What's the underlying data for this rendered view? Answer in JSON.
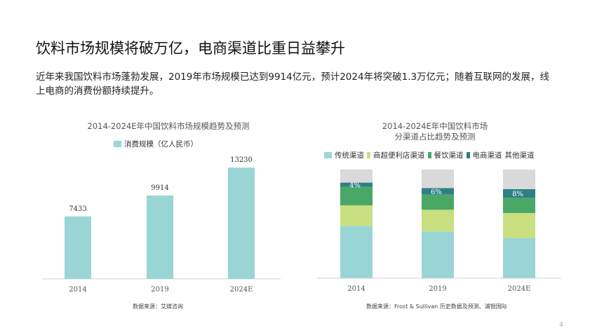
{
  "page": {
    "title": "饮料市场规模将破万亿，电商渠道比重日益攀升",
    "subtitle": "近年来我国饮料市场蓬勃发展，2019年市场规模已达到9914亿元，预计2024年将突破1.3万亿元；随着互联网的发展，线上电商的消费份额持续提升。",
    "page_number": "4"
  },
  "chart_data": [
    {
      "type": "bar",
      "title": "2014-2024E年中国饮料市场规模趋势及预测",
      "categories": [
        "2014",
        "2019",
        "2024E"
      ],
      "series": [
        {
          "name": "消费规模（亿人民币）",
          "values": [
            7433,
            9914,
            13230
          ]
        }
      ],
      "ylim": [
        0,
        15000
      ],
      "legend": "top-center",
      "grid": false,
      "color": "#9ad5d6",
      "source": "数据来源：艾媒咨询"
    },
    {
      "type": "bar",
      "stacked": true,
      "percent": true,
      "title_lines": [
        "2014-2024E年中国饮料市场",
        "分渠道占比趋势及预测"
      ],
      "categories": [
        "2014",
        "2019",
        "2024E"
      ],
      "series": [
        {
          "name": "传统渠道",
          "color": "#9ad5d6",
          "values": [
            48,
            43,
            37
          ]
        },
        {
          "name": "商超便利店渠道",
          "color": "#c9df80",
          "values": [
            19,
            20,
            23
          ]
        },
        {
          "name": "餐饮渠道",
          "color": "#4aa866",
          "values": [
            17,
            14,
            14
          ]
        },
        {
          "name": "电商渠道",
          "color": "#2e7f86",
          "values": [
            4,
            6,
            8
          ],
          "labels": [
            "4%",
            "6%",
            "8%"
          ]
        },
        {
          "name": "其他渠道",
          "color": "#d9d9d9",
          "values": [
            12,
            17,
            18
          ]
        }
      ],
      "ylim": [
        0,
        100
      ],
      "legend": "top",
      "grid": false,
      "source": "数据来源：Frost & Sullivan 历史数据及预测、浦银国际"
    }
  ]
}
